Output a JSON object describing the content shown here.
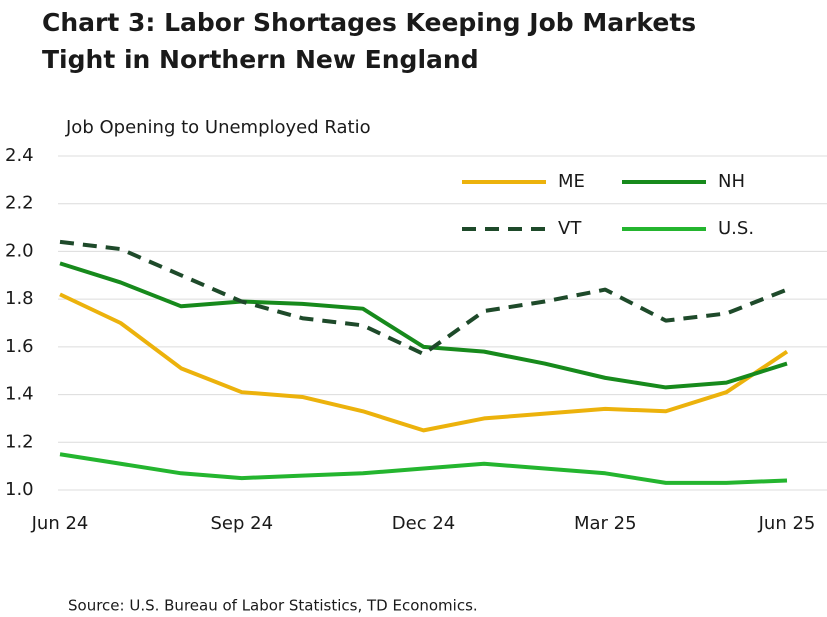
{
  "chart_data": {
    "type": "line",
    "title": [
      "Chart 3: Labor Shortages Keeping Job Markets",
      "Tight in Northern New England"
    ],
    "y_label": "Job Opening to Unemployed Ratio",
    "source": "Source: U.S. Bureau of Labor Statistics, TD Economics.",
    "categories": [
      "Jun 24",
      null,
      null,
      "Sep 24",
      null,
      null,
      "Dec 24",
      null,
      null,
      "Mar 25",
      null,
      null,
      "Jun 25"
    ],
    "ylim": [
      1.0,
      2.4
    ],
    "yticks": [
      {
        "value": 1.0,
        "label": "1.0"
      },
      1.2,
      1.4,
      1.6,
      1.8,
      {
        "value": 2.0,
        "label": "2.0"
      },
      2.2,
      2.4
    ],
    "grid": true,
    "legend": "top-right",
    "series": [
      {
        "name": "ME",
        "color": "#ecb20c",
        "style": "solid",
        "values": [
          1.82,
          1.7,
          1.51,
          1.41,
          1.39,
          1.33,
          1.25,
          1.3,
          1.32,
          1.34,
          1.33,
          1.41,
          1.58
        ]
      },
      {
        "name": "NH",
        "color": "#178a1c",
        "style": "solid",
        "values": [
          1.95,
          1.87,
          1.77,
          1.79,
          1.78,
          1.76,
          1.6,
          1.58,
          1.53,
          1.47,
          1.43,
          1.45,
          1.53
        ]
      },
      {
        "name": "VT",
        "color": "#1e4a2a",
        "style": "dashed",
        "values": [
          2.04,
          2.01,
          1.9,
          1.79,
          1.72,
          1.69,
          1.57,
          1.75,
          1.79,
          1.84,
          1.71,
          1.74,
          1.84
        ]
      },
      {
        "name": "U.S.",
        "color": "#24b52f",
        "style": "solid",
        "values": [
          1.15,
          1.11,
          1.07,
          1.05,
          1.06,
          1.07,
          1.09,
          1.11,
          1.09,
          1.07,
          1.03,
          1.03,
          1.04
        ]
      }
    ]
  }
}
